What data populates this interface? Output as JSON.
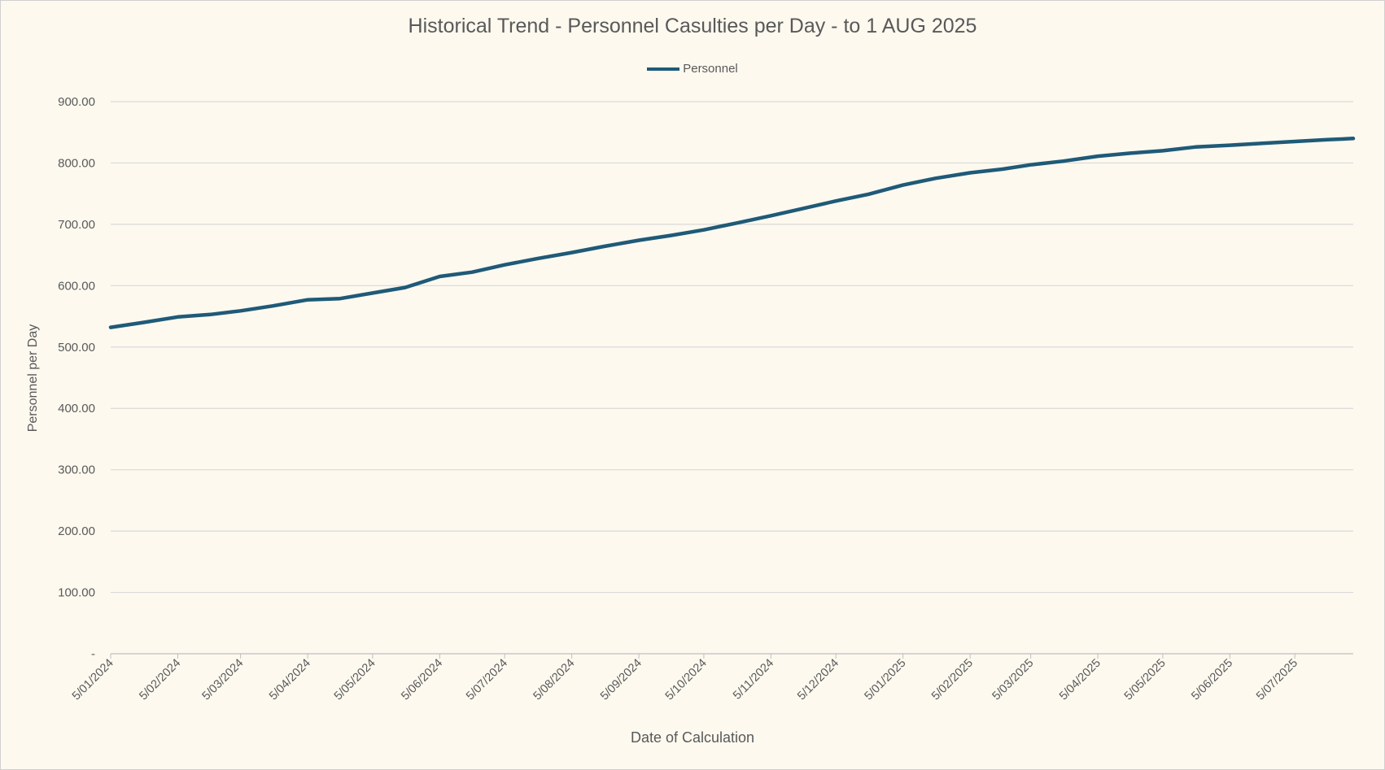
{
  "chart_data": {
    "type": "line",
    "title": "Historical Trend - Personnel Casulties per Day - to 1 AUG 2025",
    "xlabel": "Date of Calculation",
    "ylabel": "Personnel per Day",
    "ylim": [
      0,
      900
    ],
    "yticks": [
      "-",
      "100.00",
      "200.00",
      "300.00",
      "400.00",
      "500.00",
      "600.00",
      "700.00",
      "800.00",
      "900.00"
    ],
    "xticks": [
      "5/01/2024",
      "5/02/2024",
      "5/03/2024",
      "5/04/2024",
      "5/05/2024",
      "5/06/2024",
      "5/07/2024",
      "5/08/2024",
      "5/09/2024",
      "5/10/2024",
      "5/11/2024",
      "5/12/2024",
      "5/01/2025",
      "5/02/2025",
      "5/03/2025",
      "5/04/2025",
      "5/05/2025",
      "5/06/2025",
      "5/07/2025"
    ],
    "xrange": [
      "2024-01-05",
      "2025-08-01"
    ],
    "grid": true,
    "legend_position": "top",
    "series": [
      {
        "name": "Personnel",
        "color": "#1f5a78",
        "x": [
          "2024-01-05",
          "2024-01-20",
          "2024-02-05",
          "2024-02-20",
          "2024-03-05",
          "2024-03-20",
          "2024-04-05",
          "2024-04-20",
          "2024-05-05",
          "2024-05-20",
          "2024-06-05",
          "2024-06-20",
          "2024-07-05",
          "2024-07-20",
          "2024-08-05",
          "2024-08-20",
          "2024-09-05",
          "2024-09-20",
          "2024-10-05",
          "2024-10-20",
          "2024-11-05",
          "2024-11-20",
          "2024-12-05",
          "2024-12-20",
          "2025-01-05",
          "2025-01-20",
          "2025-02-05",
          "2025-02-20",
          "2025-03-05",
          "2025-03-20",
          "2025-04-05",
          "2025-04-20",
          "2025-05-05",
          "2025-05-20",
          "2025-06-05",
          "2025-06-20",
          "2025-07-05",
          "2025-07-20",
          "2025-08-01"
        ],
        "values": [
          532,
          540,
          549,
          553,
          559,
          567,
          577,
          579,
          588,
          597,
          615,
          622,
          634,
          644,
          654,
          664,
          674,
          682,
          691,
          702,
          714,
          726,
          738,
          749,
          764,
          775,
          784,
          790,
          797,
          803,
          811,
          816,
          820,
          826,
          829,
          832,
          835,
          838,
          840
        ]
      }
    ]
  }
}
